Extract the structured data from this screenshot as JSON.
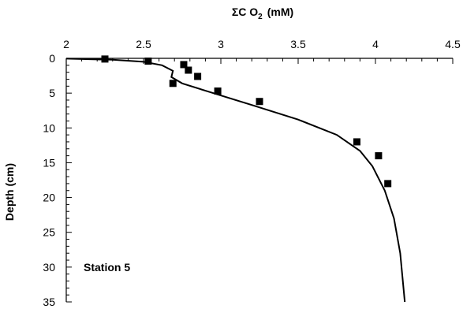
{
  "chart_data": {
    "type": "scatter",
    "title": "",
    "xlabel": "ΣC O",
    "xlabel_sub": "2",
    "xlabel_unit": "(mM)",
    "ylabel": "Depth   (cm)",
    "xlim": [
      2,
      4.5
    ],
    "ylim": [
      0,
      35
    ],
    "y_inverted": true,
    "x_axis_position": "top",
    "grid": false,
    "xticks": [
      "2",
      "2.5",
      "3",
      "3.5",
      "4",
      "4.5"
    ],
    "yticks": [
      "0",
      "5",
      "10",
      "15",
      "20",
      "25",
      "30",
      "35"
    ],
    "annotation": "Station  5",
    "series": [
      {
        "kind": "points",
        "marker": "square",
        "x": [
          2.25,
          2.53,
          2.76,
          2.79,
          2.85,
          2.69,
          2.98,
          3.25,
          3.88,
          4.02,
          4.08
        ],
        "y": [
          0.1,
          0.4,
          0.9,
          1.7,
          2.6,
          3.6,
          4.7,
          6.2,
          12.0,
          14.0,
          18.0
        ]
      },
      {
        "kind": "line",
        "x": [
          2.0,
          2.3,
          2.5,
          2.62,
          2.69,
          2.68,
          2.75,
          2.95,
          3.2,
          3.5,
          3.75,
          3.9,
          3.98,
          4.06,
          4.12,
          4.16,
          4.19
        ],
        "y": [
          0.05,
          0.2,
          0.5,
          1.0,
          1.8,
          2.7,
          3.6,
          5.0,
          6.7,
          8.8,
          11.0,
          13.3,
          15.5,
          19.0,
          23.0,
          28.0,
          35.0
        ]
      }
    ]
  }
}
